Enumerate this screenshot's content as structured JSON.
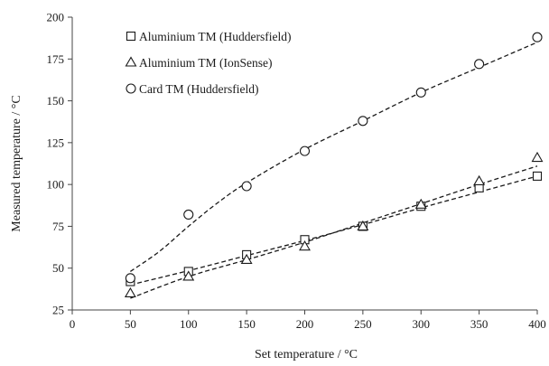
{
  "chart_data": {
    "type": "scatter",
    "xlabel": "Set temperature / °C",
    "ylabel": "Measured temperature / °C",
    "xlim": [
      0,
      400
    ],
    "ylim": [
      25,
      200
    ],
    "x_ticks": [
      0,
      50,
      100,
      150,
      200,
      250,
      300,
      350,
      400
    ],
    "y_ticks": [
      25,
      50,
      75,
      100,
      125,
      150,
      175,
      200
    ],
    "grid": false,
    "legend_position": "top-left",
    "series": [
      {
        "name": "Aluminium TM (Huddersfield)",
        "marker": "square",
        "x": [
          50,
          100,
          150,
          200,
          250,
          300,
          350,
          400
        ],
        "y": [
          42,
          48,
          58,
          67,
          75,
          87,
          98,
          105
        ],
        "trend": [
          [
            50,
            40
          ],
          [
            100,
            48.5
          ],
          [
            150,
            57.5
          ],
          [
            200,
            66.5
          ],
          [
            250,
            76
          ],
          [
            300,
            86
          ],
          [
            350,
            95.5
          ],
          [
            400,
            105
          ]
        ]
      },
      {
        "name": "Aluminium TM (IonSense)",
        "marker": "triangle",
        "x": [
          50,
          100,
          150,
          200,
          250,
          300,
          350,
          400
        ],
        "y": [
          35,
          45,
          55,
          63,
          75,
          88,
          102,
          116
        ],
        "trend": [
          [
            50,
            32
          ],
          [
            100,
            45
          ],
          [
            150,
            55
          ],
          [
            200,
            65.5
          ],
          [
            250,
            77
          ],
          [
            300,
            88.5
          ],
          [
            350,
            100
          ],
          [
            400,
            111
          ]
        ]
      },
      {
        "name": "Card TM (Huddersfield)",
        "marker": "circle",
        "x": [
          50,
          100,
          150,
          200,
          250,
          300,
          350,
          400
        ],
        "y": [
          44,
          82,
          99,
          120,
          138,
          155,
          172,
          188
        ],
        "trend": [
          [
            50,
            48
          ],
          [
            75,
            60
          ],
          [
            100,
            75
          ],
          [
            125,
            89
          ],
          [
            150,
            101
          ],
          [
            200,
            121
          ],
          [
            250,
            138
          ],
          [
            300,
            155
          ],
          [
            350,
            170
          ],
          [
            400,
            185
          ]
        ]
      }
    ],
    "colors": {
      "marker": "#1a1a1a",
      "trend": "#1a1a1a",
      "axis": "#444444"
    }
  }
}
